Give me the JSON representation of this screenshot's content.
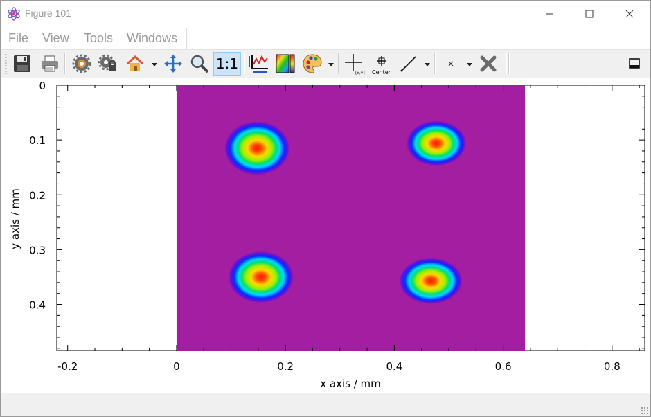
{
  "window": {
    "title": "Figure 101",
    "controls": {
      "minimize": "minimize",
      "maximize": "maximize",
      "close": "close"
    }
  },
  "menu": {
    "items": [
      "File",
      "View",
      "Tools",
      "Windows"
    ]
  },
  "toolbar": {
    "buttons": [
      {
        "name": "save",
        "icon": "floppy-disk-icon"
      },
      {
        "name": "print",
        "icon": "printer-icon"
      },
      {
        "name": "configure",
        "icon": "gear-icon"
      },
      {
        "name": "configure-2",
        "icon": "gear-lock-icon"
      },
      {
        "name": "home",
        "icon": "house-icon"
      },
      {
        "name": "pan",
        "icon": "move-arrows-icon"
      },
      {
        "name": "zoom",
        "icon": "magnifier-icon"
      },
      {
        "name": "aspect-ratio",
        "label": "1:1"
      },
      {
        "name": "axis-settings",
        "icon": "chart-axis-icon"
      },
      {
        "name": "colorbar",
        "icon": "colorbar-icon"
      },
      {
        "name": "colormap",
        "icon": "palette-icon"
      },
      {
        "name": "picker",
        "label": "[x,y]"
      },
      {
        "name": "center",
        "label": "Center"
      },
      {
        "name": "line-cut",
        "icon": "line-icon"
      },
      {
        "name": "marker",
        "label": "×"
      },
      {
        "name": "clear",
        "icon": "big-x-icon"
      },
      {
        "name": "dock",
        "icon": "dock-icon"
      }
    ],
    "colors": {
      "active_bg": "#cce4f7"
    }
  },
  "plot": {
    "xlabel": "x axis / mm",
    "ylabel": "y axis / mm",
    "x_ticks": [
      "-0.2",
      "0",
      "0.2",
      "0.4",
      "0.6",
      "0.8"
    ],
    "y_ticks": [
      "0",
      "0.1",
      "0.2",
      "0.3",
      "0.4"
    ]
  },
  "chart_data": {
    "type": "heatmap",
    "title": "",
    "xlabel": "x axis / mm",
    "ylabel": "y axis / mm",
    "xlim": [
      -0.22,
      0.86
    ],
    "ylim": [
      0.484,
      0
    ],
    "x_ticks": [
      -0.2,
      0,
      0.2,
      0.4,
      0.6,
      0.8
    ],
    "y_ticks": [
      0,
      0.1,
      0.2,
      0.3,
      0.4
    ],
    "image_extent": {
      "x": [
        0,
        0.64
      ],
      "y": [
        0,
        0.484
      ]
    },
    "background_color": "#a31ea0",
    "colormap": "jet-like (purple→blue→cyan→green→yellow→red)",
    "spots": [
      {
        "x": 0.148,
        "y": 0.115,
        "rx": 0.06,
        "ry": 0.049
      },
      {
        "x": 0.477,
        "y": 0.106,
        "rx": 0.055,
        "ry": 0.041
      },
      {
        "x": 0.155,
        "y": 0.35,
        "rx": 0.06,
        "ry": 0.047
      },
      {
        "x": 0.467,
        "y": 0.357,
        "rx": 0.058,
        "ry": 0.042
      }
    ],
    "grid": false
  }
}
